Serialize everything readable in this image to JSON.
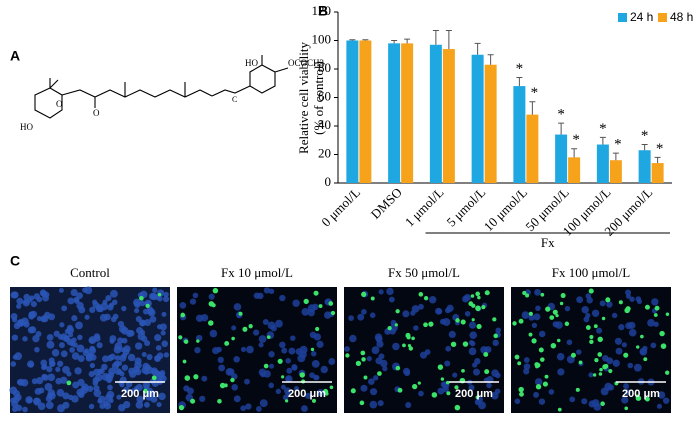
{
  "panel_a": {
    "label": "A",
    "atoms": [
      "HO",
      "O",
      "O",
      "OCOCH3",
      "HO",
      "C"
    ]
  },
  "chart_data": {
    "type": "bar",
    "label": "B",
    "ylabel": [
      "Relative cell viability",
      "(% of control)"
    ],
    "categories": [
      "0 μmol/L",
      "DMSO",
      "1 μmol/L",
      "5 μmol/L",
      "10 μmol/L",
      "50 μmol/L",
      "100 μmol/L",
      "200 μmol/L"
    ],
    "group_label": "Fx",
    "series": [
      {
        "name": "24 h",
        "color": "#1ea7e1",
        "values": [
          100,
          98,
          97,
          90,
          68,
          34,
          27,
          23
        ],
        "errors": [
          0.5,
          2,
          10,
          8,
          6,
          8,
          5,
          4
        ],
        "significant": [
          false,
          false,
          false,
          false,
          true,
          true,
          true,
          true
        ]
      },
      {
        "name": "48 h",
        "color": "#f7a21b",
        "values": [
          100,
          98,
          94,
          83,
          48,
          18,
          16,
          14
        ],
        "errors": [
          0.5,
          3,
          13,
          7,
          9,
          6,
          5,
          4
        ],
        "significant": [
          false,
          false,
          false,
          false,
          true,
          true,
          true,
          true
        ]
      }
    ],
    "significance_marker": "*",
    "ylim": [
      0,
      120
    ],
    "yticks": [
      0,
      20,
      40,
      60,
      80,
      100,
      120
    ],
    "grid": false,
    "legend": "top-right"
  },
  "panel_c": {
    "label": "C",
    "images": [
      {
        "title": "Control",
        "scale": "200 μm"
      },
      {
        "title": "Fx 10 μmol/L",
        "scale": "200 μm"
      },
      {
        "title": "Fx 50 μmol/L",
        "scale": "200 μm"
      },
      {
        "title": "Fx 100 μmol/L",
        "scale": "200 μm"
      }
    ]
  }
}
